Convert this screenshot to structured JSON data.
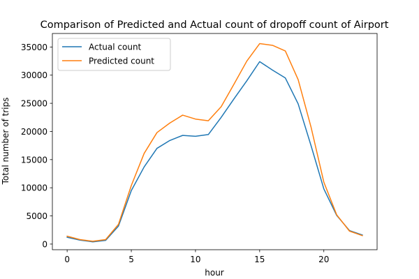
{
  "chart_data": {
    "type": "line",
    "title": "Comparison of Predicted and Actual count of dropoff count of Airport",
    "xlabel": "hour",
    "ylabel": "Total number of trips",
    "x": [
      0,
      1,
      2,
      3,
      4,
      5,
      6,
      7,
      8,
      9,
      10,
      11,
      12,
      13,
      14,
      15,
      16,
      17,
      18,
      19,
      20,
      21,
      22,
      23
    ],
    "xlim": [
      -1.15,
      24.15
    ],
    "ylim": [
      -1000,
      37400
    ],
    "xticks": [
      0,
      5,
      10,
      15,
      20
    ],
    "yticks": [
      0,
      5000,
      10000,
      15000,
      20000,
      25000,
      30000,
      35000
    ],
    "grid": false,
    "legend_position": "upper-left",
    "series": [
      {
        "name": "Actual count",
        "color": "#1f77b4",
        "values": [
          1200,
          700,
          400,
          650,
          3200,
          9500,
          13700,
          17000,
          18400,
          19300,
          19150,
          19450,
          22500,
          25800,
          29000,
          32400,
          30900,
          29500,
          24900,
          17500,
          9800,
          5100,
          2400,
          1600
        ]
      },
      {
        "name": "Predicted count",
        "color": "#ff7f0e",
        "values": [
          1400,
          800,
          500,
          800,
          3500,
          10400,
          16100,
          19800,
          21500,
          22900,
          22200,
          21900,
          24400,
          28400,
          32500,
          35600,
          35300,
          34300,
          29200,
          20800,
          11000,
          5200,
          2300,
          1500
        ]
      }
    ]
  }
}
